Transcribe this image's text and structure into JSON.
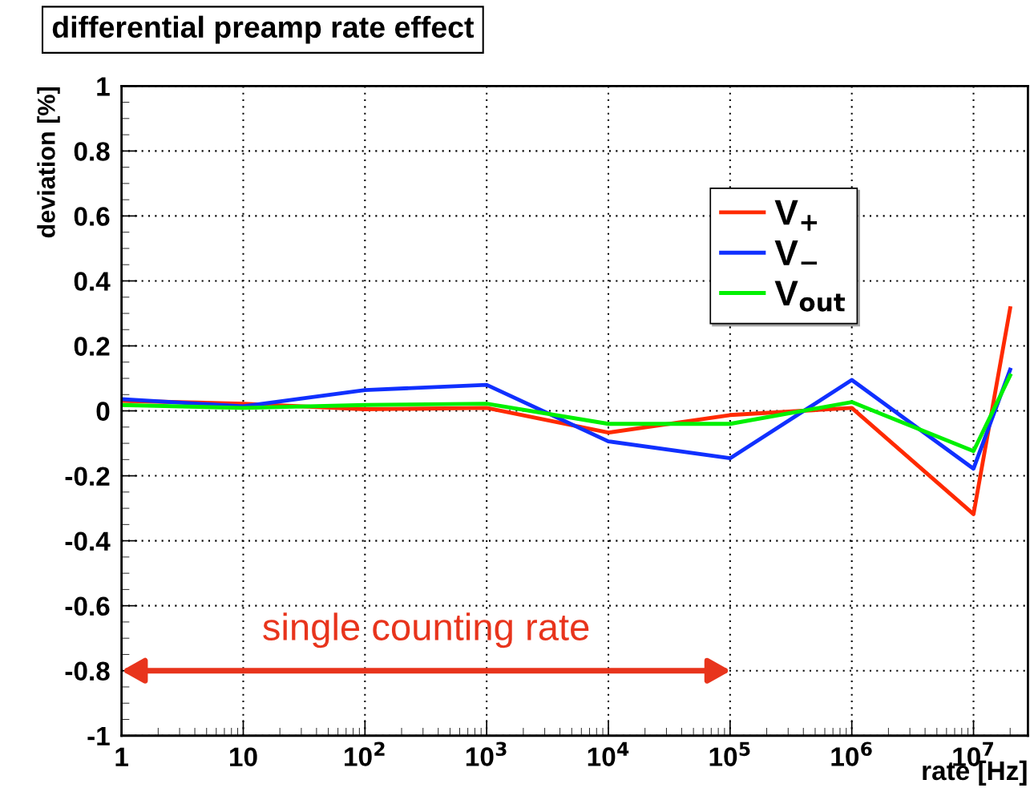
{
  "chart_data": {
    "type": "line",
    "title": "differential preamp rate effect",
    "xlabel": "rate [Hz]",
    "ylabel": "deviation [%]",
    "x": [
      1,
      10,
      100,
      1000,
      10000,
      100000,
      1000000,
      10000000,
      20000000
    ],
    "series": [
      {
        "name": "V$_{+}$",
        "color": "#ff2a00",
        "values": [
          0.031,
          0.022,
          0.005,
          0.009,
          -0.067,
          -0.013,
          0.009,
          -0.318,
          0.316
        ]
      },
      {
        "name": "V$_{−}$",
        "color": "#1030ff",
        "values": [
          0.036,
          0.014,
          0.064,
          0.08,
          -0.094,
          -0.146,
          0.095,
          -0.178,
          0.127
        ]
      },
      {
        "name": "V$_{out}$",
        "color": "#00f000",
        "values": [
          0.018,
          0.009,
          0.018,
          0.022,
          -0.04,
          -0.04,
          0.027,
          -0.124,
          0.109
        ]
      }
    ],
    "log": "x",
    "xlim": [
      1,
      28000000
    ],
    "ylim": [
      -1,
      1
    ],
    "xticks": [
      1,
      10,
      {
        "value": 100,
        "label": "10$^{2}$"
      },
      {
        "value": 1000,
        "label": "10$^{3}$"
      },
      {
        "value": 10000,
        "label": "10$^{4}$"
      },
      {
        "value": 100000,
        "label": "10$^{5}$"
      },
      {
        "value": 1000000,
        "label": "10$^{6}$"
      },
      {
        "value": 10000000,
        "label": "10$^{7}$"
      }
    ],
    "yticks": [
      -1,
      -0.8,
      -0.6,
      -0.4,
      -0.2,
      0,
      0.2,
      0.4,
      0.6,
      0.8,
      1
    ],
    "grid": true,
    "legend": "top right",
    "marker": "none",
    "line_style": "solid",
    "annotations": [
      "single counting rate"
    ]
  }
}
